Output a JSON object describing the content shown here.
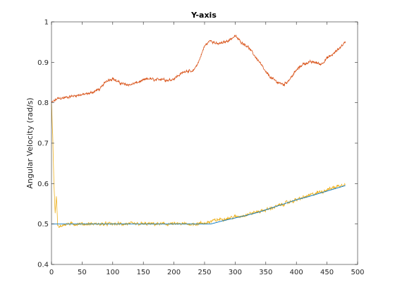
{
  "chart_data": {
    "type": "line",
    "title": "Y-axis",
    "xlabel": "",
    "ylabel": "Angular Velocity (rad/s)",
    "xlim": [
      0,
      500
    ],
    "ylim": [
      0.4,
      1.0
    ],
    "x_ticks": [
      "0",
      "50",
      "100",
      "150",
      "200",
      "250",
      "300",
      "350",
      "400",
      "450",
      "500"
    ],
    "y_ticks": [
      "0.4",
      "0.5",
      "0.6",
      "0.7",
      "0.8",
      "0.9",
      "1"
    ],
    "grid": false,
    "legend": "none",
    "series": [
      {
        "color": "#D95319",
        "points": [
          [
            0,
            0.8
          ],
          [
            5,
            0.805
          ],
          [
            10,
            0.81
          ],
          [
            20,
            0.812
          ],
          [
            30,
            0.815
          ],
          [
            40,
            0.818
          ],
          [
            50,
            0.82
          ],
          [
            60,
            0.822
          ],
          [
            70,
            0.828
          ],
          [
            80,
            0.835
          ],
          [
            90,
            0.855
          ],
          [
            100,
            0.86
          ],
          [
            110,
            0.85
          ],
          [
            120,
            0.845
          ],
          [
            130,
            0.845
          ],
          [
            140,
            0.85
          ],
          [
            150,
            0.855
          ],
          [
            160,
            0.86
          ],
          [
            170,
            0.855
          ],
          [
            180,
            0.86
          ],
          [
            190,
            0.855
          ],
          [
            200,
            0.86
          ],
          [
            210,
            0.87
          ],
          [
            220,
            0.88
          ],
          [
            230,
            0.875
          ],
          [
            240,
            0.9
          ],
          [
            250,
            0.94
          ],
          [
            260,
            0.955
          ],
          [
            270,
            0.945
          ],
          [
            280,
            0.948
          ],
          [
            290,
            0.955
          ],
          [
            300,
            0.965
          ],
          [
            310,
            0.95
          ],
          [
            320,
            0.94
          ],
          [
            330,
            0.92
          ],
          [
            340,
            0.9
          ],
          [
            350,
            0.875
          ],
          [
            360,
            0.86
          ],
          [
            370,
            0.85
          ],
          [
            380,
            0.845
          ],
          [
            390,
            0.86
          ],
          [
            400,
            0.88
          ],
          [
            410,
            0.895
          ],
          [
            420,
            0.9
          ],
          [
            430,
            0.9
          ],
          [
            440,
            0.895
          ],
          [
            450,
            0.91
          ],
          [
            460,
            0.92
          ],
          [
            470,
            0.935
          ],
          [
            480,
            0.95
          ]
        ],
        "noise": 0.004
      },
      {
        "color": "#EDB120",
        "points": [
          [
            0,
            0.8
          ],
          [
            2,
            0.72
          ],
          [
            4,
            0.6
          ],
          [
            6,
            0.53
          ],
          [
            8,
            0.57
          ],
          [
            10,
            0.5
          ],
          [
            12,
            0.49
          ],
          [
            20,
            0.5
          ],
          [
            30,
            0.5
          ],
          [
            50,
            0.5
          ],
          [
            100,
            0.5
          ],
          [
            150,
            0.5
          ],
          [
            200,
            0.5
          ],
          [
            230,
            0.5
          ],
          [
            250,
            0.502
          ],
          [
            270,
            0.51
          ],
          [
            290,
            0.515
          ],
          [
            310,
            0.52
          ],
          [
            330,
            0.528
          ],
          [
            350,
            0.535
          ],
          [
            370,
            0.545
          ],
          [
            390,
            0.555
          ],
          [
            410,
            0.565
          ],
          [
            430,
            0.575
          ],
          [
            450,
            0.585
          ],
          [
            470,
            0.595
          ],
          [
            480,
            0.6
          ]
        ],
        "noise": 0.005
      },
      {
        "color": "#0072BD",
        "points": [
          [
            0,
            0.5
          ],
          [
            260,
            0.5
          ],
          [
            280,
            0.508
          ],
          [
            300,
            0.515
          ],
          [
            320,
            0.522
          ],
          [
            340,
            0.53
          ],
          [
            360,
            0.54
          ],
          [
            380,
            0.55
          ],
          [
            400,
            0.56
          ],
          [
            420,
            0.568
          ],
          [
            440,
            0.577
          ],
          [
            460,
            0.586
          ],
          [
            480,
            0.595
          ]
        ],
        "noise": 0.0
      }
    ]
  }
}
